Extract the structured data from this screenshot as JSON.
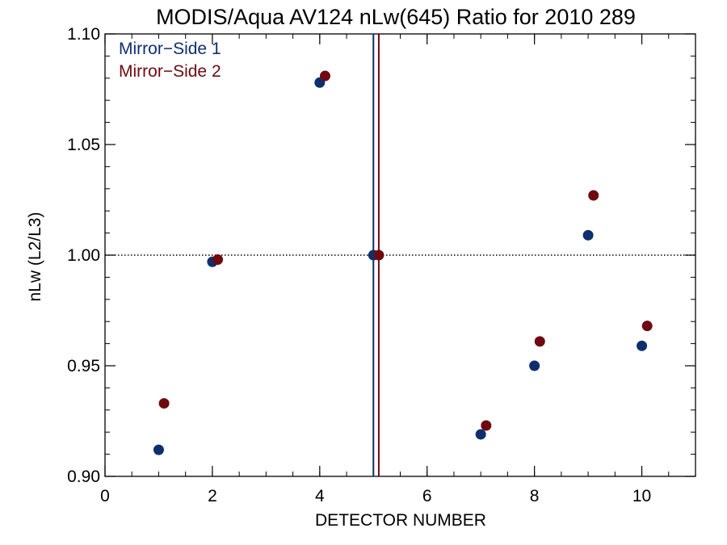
{
  "chart_data": {
    "type": "scatter",
    "title": "MODIS/Aqua AV124 nLw(645) Ratio for 2010 289",
    "xlabel": "DETECTOR NUMBER",
    "ylabel": "nLw (L2/L3)",
    "xlim": [
      0,
      11
    ],
    "ylim": [
      0.9,
      1.1
    ],
    "xticks": [
      0,
      2,
      4,
      6,
      8,
      10
    ],
    "xtick_labels": [
      "0",
      "2",
      "4",
      "6",
      "8",
      "10"
    ],
    "yticks": [
      0.9,
      0.95,
      1.0,
      1.05,
      1.1
    ],
    "ytick_labels": [
      "0.90",
      "0.95",
      "1.00",
      "1.05",
      "1.10"
    ],
    "x_minor_step": 0.5,
    "y_minor_step": 0.01,
    "reference_line": {
      "y": 1.0,
      "style": "dotted"
    },
    "vertical_lines": [
      {
        "x": 5.0,
        "series": 0
      },
      {
        "x": 5.1,
        "series": 1
      }
    ],
    "legend_position": "top-left",
    "series": [
      {
        "name": "Mirror−Side 1",
        "color": "#0d2f6e",
        "points": [
          [
            1,
            0.912
          ],
          [
            2,
            0.997
          ],
          [
            4,
            1.078
          ],
          [
            5,
            1.0
          ],
          [
            7,
            0.919
          ],
          [
            8,
            0.95
          ],
          [
            9,
            1.009
          ],
          [
            10,
            0.959
          ]
        ]
      },
      {
        "name": "Mirror−Side 2",
        "color": "#6e0a0f",
        "points": [
          [
            1.1,
            0.933
          ],
          [
            2.1,
            0.998
          ],
          [
            4.1,
            1.081
          ],
          [
            5.1,
            1.0
          ],
          [
            7.1,
            0.923
          ],
          [
            8.1,
            0.961
          ],
          [
            9.1,
            1.027
          ],
          [
            10.1,
            0.968
          ]
        ]
      }
    ]
  }
}
